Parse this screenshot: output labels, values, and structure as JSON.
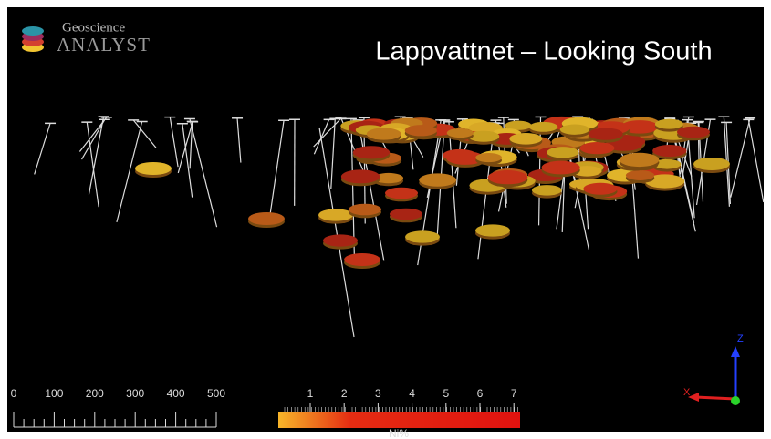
{
  "logo": {
    "line1": "Geoscience",
    "line2": "ANALYST"
  },
  "title": "Lappvattnet – Looking South",
  "scale_bar": {
    "labels": [
      "0",
      "100",
      "200",
      "300",
      "400",
      "500"
    ]
  },
  "color_bar": {
    "labels": [
      "1",
      "2",
      "3",
      "4",
      "5",
      "6",
      "7"
    ],
    "caption": "Ni%"
  },
  "axes": {
    "z": "Z",
    "x": "X"
  }
}
